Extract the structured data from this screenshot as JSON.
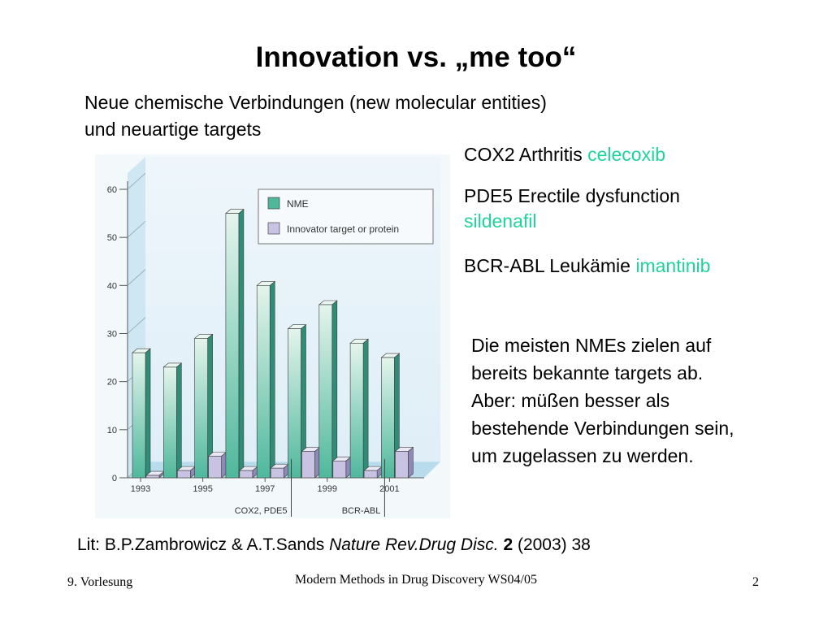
{
  "slide": {
    "title": "Innovation vs. „me too“",
    "subtitle_lines": [
      "Neue chemische Verbindungen (new molecular entities)",
      "und neuartige targets"
    ],
    "drugs": [
      {
        "target": "COX2",
        "indication": "Arthritis",
        "drug": "celecoxib"
      },
      {
        "target": "PDE5",
        "indication": "Erectile dysfunction",
        "drug": "sildenafil"
      },
      {
        "target": "BCR-ABL",
        "indication": "Leukämie",
        "drug": "imantinib"
      }
    ],
    "summary_lines": [
      "Die meisten NMEs zielen auf",
      "bereits bekannte targets ab.",
      "Aber: müßen besser als",
      "bestehende Verbindungen sein,",
      "um zugelassen zu werden."
    ],
    "citation": {
      "prefix": "Lit: B.P.Zambrowicz & A.T.Sands ",
      "journal": "Nature Rev.Drug Disc.",
      "volume": "2",
      "rest": " (2003) 38"
    },
    "footer": {
      "left": "9. Vorlesung",
      "center": "Modern Methods in Drug Discovery WS04/05",
      "right": "2"
    },
    "colors": {
      "drug_name": "#1fd39a",
      "nme_bar": "#4fb89c",
      "innovator_bar": "#c8c3e3",
      "chart_bg": "#dfeef7"
    }
  },
  "chart_data": {
    "type": "bar",
    "categories": [
      "1993",
      "1994",
      "1995",
      "1996",
      "1997",
      "1998",
      "1999",
      "2000",
      "2001"
    ],
    "x_tick_labels": [
      "1993",
      "1995",
      "1997",
      "1999",
      "2001"
    ],
    "series": [
      {
        "name": "NME",
        "values": [
          26,
          23,
          29,
          55,
          40,
          31,
          36,
          28,
          25
        ]
      },
      {
        "name": "Innovator target or protein",
        "values": [
          0.5,
          1.5,
          4.5,
          1.5,
          2,
          5.5,
          3.5,
          1.5,
          5.5
        ]
      }
    ],
    "ylim": [
      0,
      60
    ],
    "yticks": [
      0,
      10,
      20,
      30,
      40,
      50,
      60
    ],
    "annotations": [
      {
        "label": "COX2, PDE5",
        "at": "1998"
      },
      {
        "label": "BCR-ABL",
        "at": "2001"
      }
    ],
    "legend_position": "top-right",
    "grid": false
  }
}
